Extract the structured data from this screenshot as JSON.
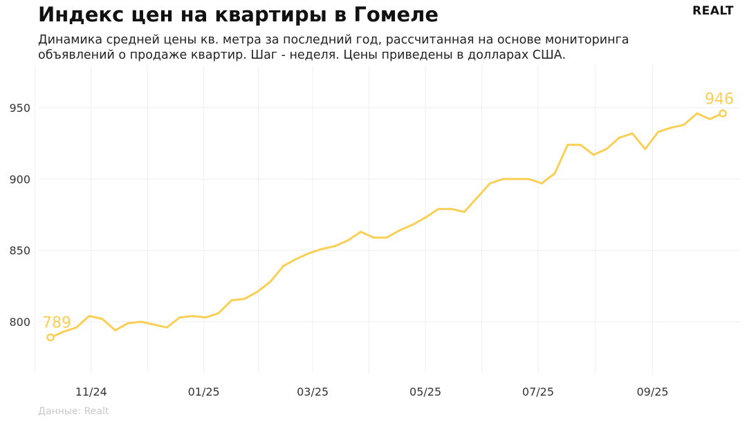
{
  "header": {
    "title": "Индекс цен на квартиры в Гомеле",
    "subtitle": "Динамика средней цены кв. метра за последний год, рассчитанная на основе мониторинга объявлений о продаже квартир. Шаг - неделя. Цены приведены в долларах США.",
    "logo": "REALT"
  },
  "footer": {
    "source": "Данные: Realt"
  },
  "colors": {
    "line": "#f9cf55",
    "grid": "#eeeeee"
  },
  "chart_data": {
    "type": "line",
    "title": "Индекс цен на квартиры в Гомеле",
    "xlabel": "",
    "ylabel": "",
    "ylim": [
      770,
      975
    ],
    "y_ticks": [
      800,
      850,
      900,
      950
    ],
    "x_ticks": [
      "11/24",
      "01/25",
      "03/25",
      "05/25",
      "07/25",
      "09/25"
    ],
    "grid": true,
    "legend": "none",
    "start_label": "789",
    "end_label": "946",
    "x": [
      "2024-10-10",
      "2024-10-17",
      "2024-10-24",
      "2024-10-31",
      "2024-11-07",
      "2024-11-14",
      "2024-11-21",
      "2024-11-28",
      "2024-12-05",
      "2024-12-12",
      "2024-12-19",
      "2024-12-26",
      "2025-01-02",
      "2025-01-09",
      "2025-01-16",
      "2025-01-23",
      "2025-01-30",
      "2025-02-06",
      "2025-02-13",
      "2025-02-20",
      "2025-02-27",
      "2025-03-06",
      "2025-03-13",
      "2025-03-20",
      "2025-03-27",
      "2025-04-03",
      "2025-04-10",
      "2025-04-17",
      "2025-04-24",
      "2025-05-01",
      "2025-05-08",
      "2025-05-15",
      "2025-05-22",
      "2025-05-29",
      "2025-06-05",
      "2025-06-12",
      "2025-06-19",
      "2025-06-26",
      "2025-07-03",
      "2025-07-10",
      "2025-07-17",
      "2025-07-24",
      "2025-07-31",
      "2025-08-07",
      "2025-08-14",
      "2025-08-21",
      "2025-08-28",
      "2025-09-04",
      "2025-09-11",
      "2025-09-18",
      "2025-09-25",
      "2025-10-02",
      "2025-10-09"
    ],
    "series": [
      {
        "values": [
          789,
          793,
          796,
          804,
          802,
          794,
          799,
          800,
          798,
          796,
          803,
          804,
          803,
          806,
          815,
          816,
          821,
          828,
          839,
          844,
          848,
          851,
          853,
          857,
          863,
          859,
          859,
          864,
          868,
          873,
          879,
          879,
          877,
          887,
          897,
          900,
          900,
          900,
          897,
          904,
          924,
          924,
          917,
          921,
          929,
          932,
          921,
          933,
          936,
          938,
          946,
          942,
          946
        ]
      }
    ]
  }
}
